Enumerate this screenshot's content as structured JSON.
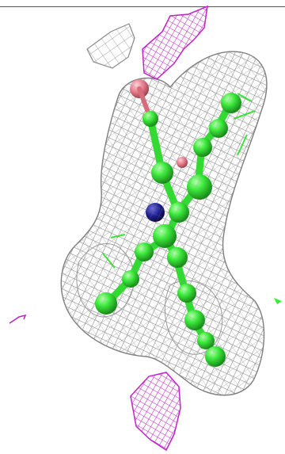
{
  "scene": {
    "background_color": "#ffffff",
    "density_mesh_color": "#8a8a8a",
    "diff_map_positive_color": "#c023c8",
    "ligand_carbon_color": "#33ee33",
    "nitrogen_color": "#1c1c8e",
    "oxygen_color": "#e37383"
  }
}
